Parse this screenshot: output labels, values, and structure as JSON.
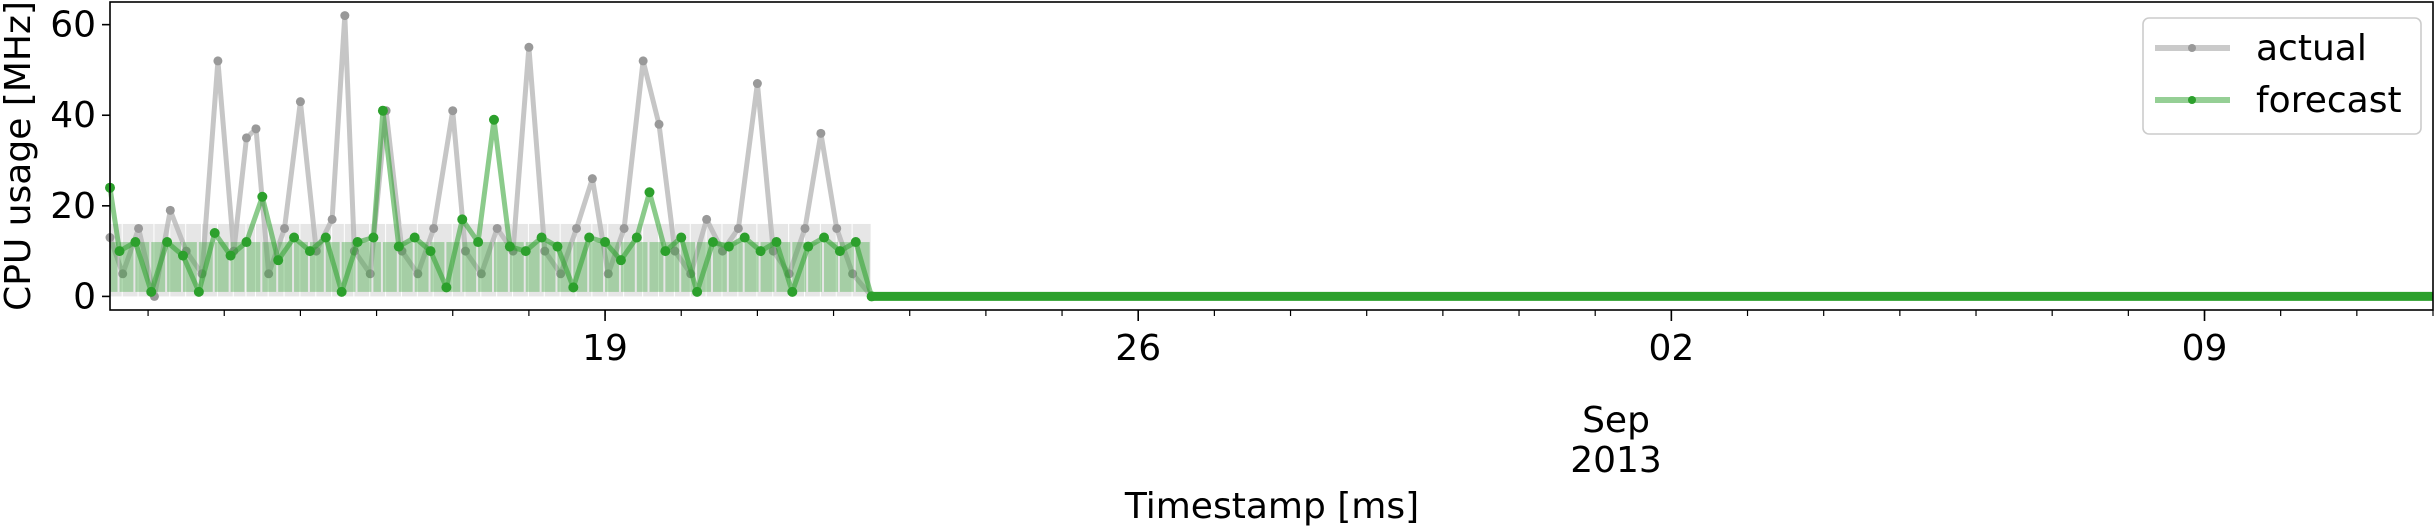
{
  "chart_data": {
    "type": "line",
    "title": "",
    "xlabel": "Timestamp [ms]",
    "ylabel": "CPU usage [MHz]",
    "ylim": [
      -3,
      65
    ],
    "xlim": [
      "2013-08-12T12:00",
      "2013-09-12T00:00"
    ],
    "yticks": [
      0,
      20,
      40,
      60
    ],
    "xticks": [
      {
        "date": "2013-08-19T00:00",
        "label": "19"
      },
      {
        "date": "2013-08-26T00:00",
        "label": "26"
      },
      {
        "date": "2013-09-02T00:00",
        "label": "02"
      },
      {
        "date": "2013-09-09T00:00",
        "label": "09"
      }
    ],
    "x_offset_label": [
      "Sep",
      "2013"
    ],
    "grid": false,
    "legend_position": "top-right",
    "colors": {
      "actual": "#b3b3b3",
      "forecast": "#2ca02c",
      "point_actual": "#999999"
    },
    "data_end": "2013-08-22T12:00",
    "series": [
      {
        "name": "actual",
        "points": [
          [
            "2013-08-12T12:00",
            13
          ],
          [
            "2013-08-12T16:00",
            5
          ],
          [
            "2013-08-12T21:00",
            15
          ],
          [
            "2013-08-13T02:00",
            0
          ],
          [
            "2013-08-13T07:00",
            19
          ],
          [
            "2013-08-13T12:00",
            10
          ],
          [
            "2013-08-13T17:00",
            5
          ],
          [
            "2013-08-13T22:00",
            52
          ],
          [
            "2013-08-14T03:00",
            10
          ],
          [
            "2013-08-14T07:00",
            35
          ],
          [
            "2013-08-14T10:00",
            37
          ],
          [
            "2013-08-14T14:00",
            5
          ],
          [
            "2013-08-14T19:00",
            15
          ],
          [
            "2013-08-15T00:00",
            43
          ],
          [
            "2013-08-15T05:00",
            10
          ],
          [
            "2013-08-15T10:00",
            17
          ],
          [
            "2013-08-15T14:00",
            62
          ],
          [
            "2013-08-15T17:00",
            10
          ],
          [
            "2013-08-15T22:00",
            5
          ],
          [
            "2013-08-16T03:00",
            41
          ],
          [
            "2013-08-16T08:00",
            10
          ],
          [
            "2013-08-16T13:00",
            5
          ],
          [
            "2013-08-16T18:00",
            15
          ],
          [
            "2013-08-17T00:00",
            41
          ],
          [
            "2013-08-17T04:00",
            10
          ],
          [
            "2013-08-17T09:00",
            5
          ],
          [
            "2013-08-17T14:00",
            15
          ],
          [
            "2013-08-17T19:00",
            10
          ],
          [
            "2013-08-18T00:00",
            55
          ],
          [
            "2013-08-18T05:00",
            10
          ],
          [
            "2013-08-18T10:00",
            5
          ],
          [
            "2013-08-18T15:00",
            15
          ],
          [
            "2013-08-18T20:00",
            26
          ],
          [
            "2013-08-19T01:00",
            5
          ],
          [
            "2013-08-19T06:00",
            15
          ],
          [
            "2013-08-19T12:00",
            52
          ],
          [
            "2013-08-19T17:00",
            38
          ],
          [
            "2013-08-19T22:00",
            10
          ],
          [
            "2013-08-20T03:00",
            5
          ],
          [
            "2013-08-20T08:00",
            17
          ],
          [
            "2013-08-20T13:00",
            10
          ],
          [
            "2013-08-20T18:00",
            15
          ],
          [
            "2013-08-21T00:00",
            47
          ],
          [
            "2013-08-21T05:00",
            10
          ],
          [
            "2013-08-21T10:00",
            5
          ],
          [
            "2013-08-21T15:00",
            15
          ],
          [
            "2013-08-21T20:00",
            36
          ],
          [
            "2013-08-22T01:00",
            15
          ],
          [
            "2013-08-22T06:00",
            5
          ],
          [
            "2013-08-22T12:00",
            0
          ],
          [
            "2013-09-12T00:00",
            0
          ]
        ]
      },
      {
        "name": "forecast",
        "points": [
          [
            "2013-08-12T12:00",
            24
          ],
          [
            "2013-08-12T15:00",
            10
          ],
          [
            "2013-08-12T20:00",
            12
          ],
          [
            "2013-08-13T01:00",
            1
          ],
          [
            "2013-08-13T06:00",
            12
          ],
          [
            "2013-08-13T11:00",
            9
          ],
          [
            "2013-08-13T16:00",
            1
          ],
          [
            "2013-08-13T21:00",
            14
          ],
          [
            "2013-08-14T02:00",
            9
          ],
          [
            "2013-08-14T07:00",
            12
          ],
          [
            "2013-08-14T12:00",
            22
          ],
          [
            "2013-08-14T17:00",
            8
          ],
          [
            "2013-08-14T22:00",
            13
          ],
          [
            "2013-08-15T03:00",
            10
          ],
          [
            "2013-08-15T08:00",
            13
          ],
          [
            "2013-08-15T13:00",
            1
          ],
          [
            "2013-08-15T18:00",
            12
          ],
          [
            "2013-08-15T23:00",
            13
          ],
          [
            "2013-08-16T02:00",
            41
          ],
          [
            "2013-08-16T07:00",
            11
          ],
          [
            "2013-08-16T12:00",
            13
          ],
          [
            "2013-08-16T17:00",
            10
          ],
          [
            "2013-08-16T22:00",
            2
          ],
          [
            "2013-08-17T03:00",
            17
          ],
          [
            "2013-08-17T08:00",
            12
          ],
          [
            "2013-08-17T13:00",
            39
          ],
          [
            "2013-08-17T18:00",
            11
          ],
          [
            "2013-08-17T23:00",
            10
          ],
          [
            "2013-08-18T04:00",
            13
          ],
          [
            "2013-08-18T09:00",
            11
          ],
          [
            "2013-08-18T14:00",
            2
          ],
          [
            "2013-08-18T19:00",
            13
          ],
          [
            "2013-08-19T00:00",
            12
          ],
          [
            "2013-08-19T05:00",
            8
          ],
          [
            "2013-08-19T10:00",
            13
          ],
          [
            "2013-08-19T14:00",
            23
          ],
          [
            "2013-08-19T19:00",
            10
          ],
          [
            "2013-08-20T00:00",
            13
          ],
          [
            "2013-08-20T05:00",
            1
          ],
          [
            "2013-08-20T10:00",
            12
          ],
          [
            "2013-08-20T15:00",
            11
          ],
          [
            "2013-08-20T20:00",
            13
          ],
          [
            "2013-08-21T01:00",
            10
          ],
          [
            "2013-08-21T06:00",
            12
          ],
          [
            "2013-08-21T11:00",
            1
          ],
          [
            "2013-08-21T16:00",
            11
          ],
          [
            "2013-08-21T21:00",
            13
          ],
          [
            "2013-08-22T02:00",
            10
          ],
          [
            "2013-08-22T07:00",
            12
          ],
          [
            "2013-08-22T12:00",
            0
          ],
          [
            "2013-09-12T00:00",
            0
          ]
        ]
      }
    ]
  }
}
